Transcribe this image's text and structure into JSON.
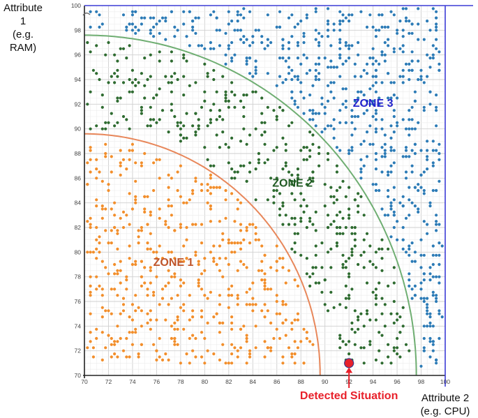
{
  "axis_labels": {
    "y_line1": "Attribute 1",
    "y_line2": "(e.g. RAM)",
    "x_line1": "Attribute 2",
    "x_line2": "(e.g. CPU)"
  },
  "colors": {
    "zone1": "#f28e2b",
    "zone2": "#2e6b30",
    "zone3": "#2c7bb6",
    "zone1_boundary": "#e8875a",
    "zone2_boundary": "#6fae72",
    "border": "#3c3cd6",
    "detected": "#e8202a",
    "zone1_label": "#c0552a",
    "zone2_label": "#1f5a22",
    "zone3_label": "#2222cc"
  },
  "chart_data": {
    "type": "scatter",
    "title": "",
    "xlabel": "Attribute 2 (e.g. CPU)",
    "ylabel": "Attribute 1 (e.g. RAM)",
    "xlim": [
      70,
      100
    ],
    "ylim": [
      70,
      100
    ],
    "x_ticks": [
      70,
      72,
      74,
      76,
      78,
      80,
      82,
      84,
      86,
      88,
      90,
      92,
      94,
      96,
      98,
      100
    ],
    "y_ticks": [
      70,
      72,
      74,
      76,
      78,
      80,
      82,
      84,
      86,
      88,
      90,
      92,
      94,
      96,
      98,
      100
    ],
    "grid": true,
    "origin": [
      70,
      70
    ],
    "boundaries": [
      {
        "name": "zone1-boundary",
        "radius": 19.6,
        "color": "#e8875a"
      },
      {
        "name": "zone2-boundary",
        "radius": 27.6,
        "color": "#6fae72"
      }
    ],
    "zones": [
      {
        "name": "ZONE 1",
        "label_x": 77.4,
        "label_y": 78.9,
        "color": "#f28e2b",
        "point_count": 520
      },
      {
        "name": "ZONE 2",
        "label_x": 87.3,
        "label_y": 85.3,
        "color": "#2e6b30",
        "point_count": 450
      },
      {
        "name": "ZONE 3",
        "label_x": 94.0,
        "label_y": 91.8,
        "color": "#2c7bb6",
        "point_count": 650
      }
    ],
    "detected_situation": {
      "label": "Detected Situation",
      "x": 92.0,
      "y": 71.0
    }
  }
}
